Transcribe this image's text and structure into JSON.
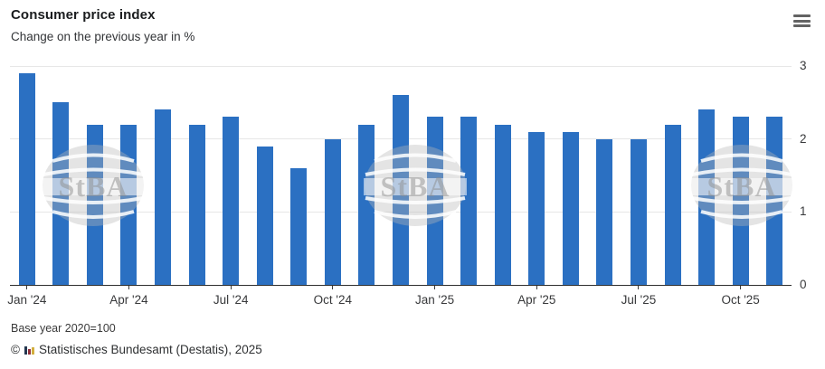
{
  "header": {
    "title": "Consumer price index",
    "subtitle": "Change on the previous year in %"
  },
  "chart_data": {
    "type": "bar",
    "title": "Consumer price index",
    "subtitle": "Change on the previous year in %",
    "categories": [
      "Jan '24",
      "Feb '24",
      "Mar '24",
      "Apr '24",
      "May '24",
      "Jun '24",
      "Jul '24",
      "Aug '24",
      "Sep '24",
      "Oct '24",
      "Nov '24",
      "Dec '24",
      "Jan '25",
      "Feb '25",
      "Mar '25",
      "Apr '25",
      "May '25",
      "Jun '25",
      "Jul '25",
      "Aug '25",
      "Sep '25",
      "Oct '25",
      "Nov '25"
    ],
    "values": [
      2.9,
      2.5,
      2.2,
      2.2,
      2.4,
      2.2,
      2.3,
      1.9,
      1.6,
      2.0,
      2.2,
      2.6,
      2.3,
      2.3,
      2.2,
      2.1,
      2.1,
      2.0,
      2.0,
      2.2,
      2.4,
      2.3,
      2.3
    ],
    "ylabel": "",
    "xlabel": "",
    "ylim": [
      0,
      3
    ],
    "y_ticks": [
      0,
      1,
      2,
      3
    ],
    "x_tick_indices": [
      0,
      3,
      6,
      9,
      12,
      15,
      18,
      21
    ],
    "x_tick_labels": [
      "Jan '24",
      "Apr '24",
      "Jul '24",
      "Oct '24",
      "Jan '25",
      "Apr '25",
      "Jul '25",
      "Oct '25"
    ],
    "grid": true,
    "legend": false,
    "bar_color": "#2b70c2",
    "watermark_text": "StBA"
  },
  "footer": {
    "note": "Base year 2020=100",
    "copyright_symbol": "©",
    "source": "Statistisches Bundesamt (Destatis), 2025"
  },
  "colors": {
    "bar": "#2b70c2",
    "axis": "#2f2f2f",
    "grid": "#e7e7e7",
    "text": "#38393b",
    "logo_navy": "#24374f",
    "logo_red": "#8f2f3a",
    "logo_yellow": "#d2ae3e"
  }
}
